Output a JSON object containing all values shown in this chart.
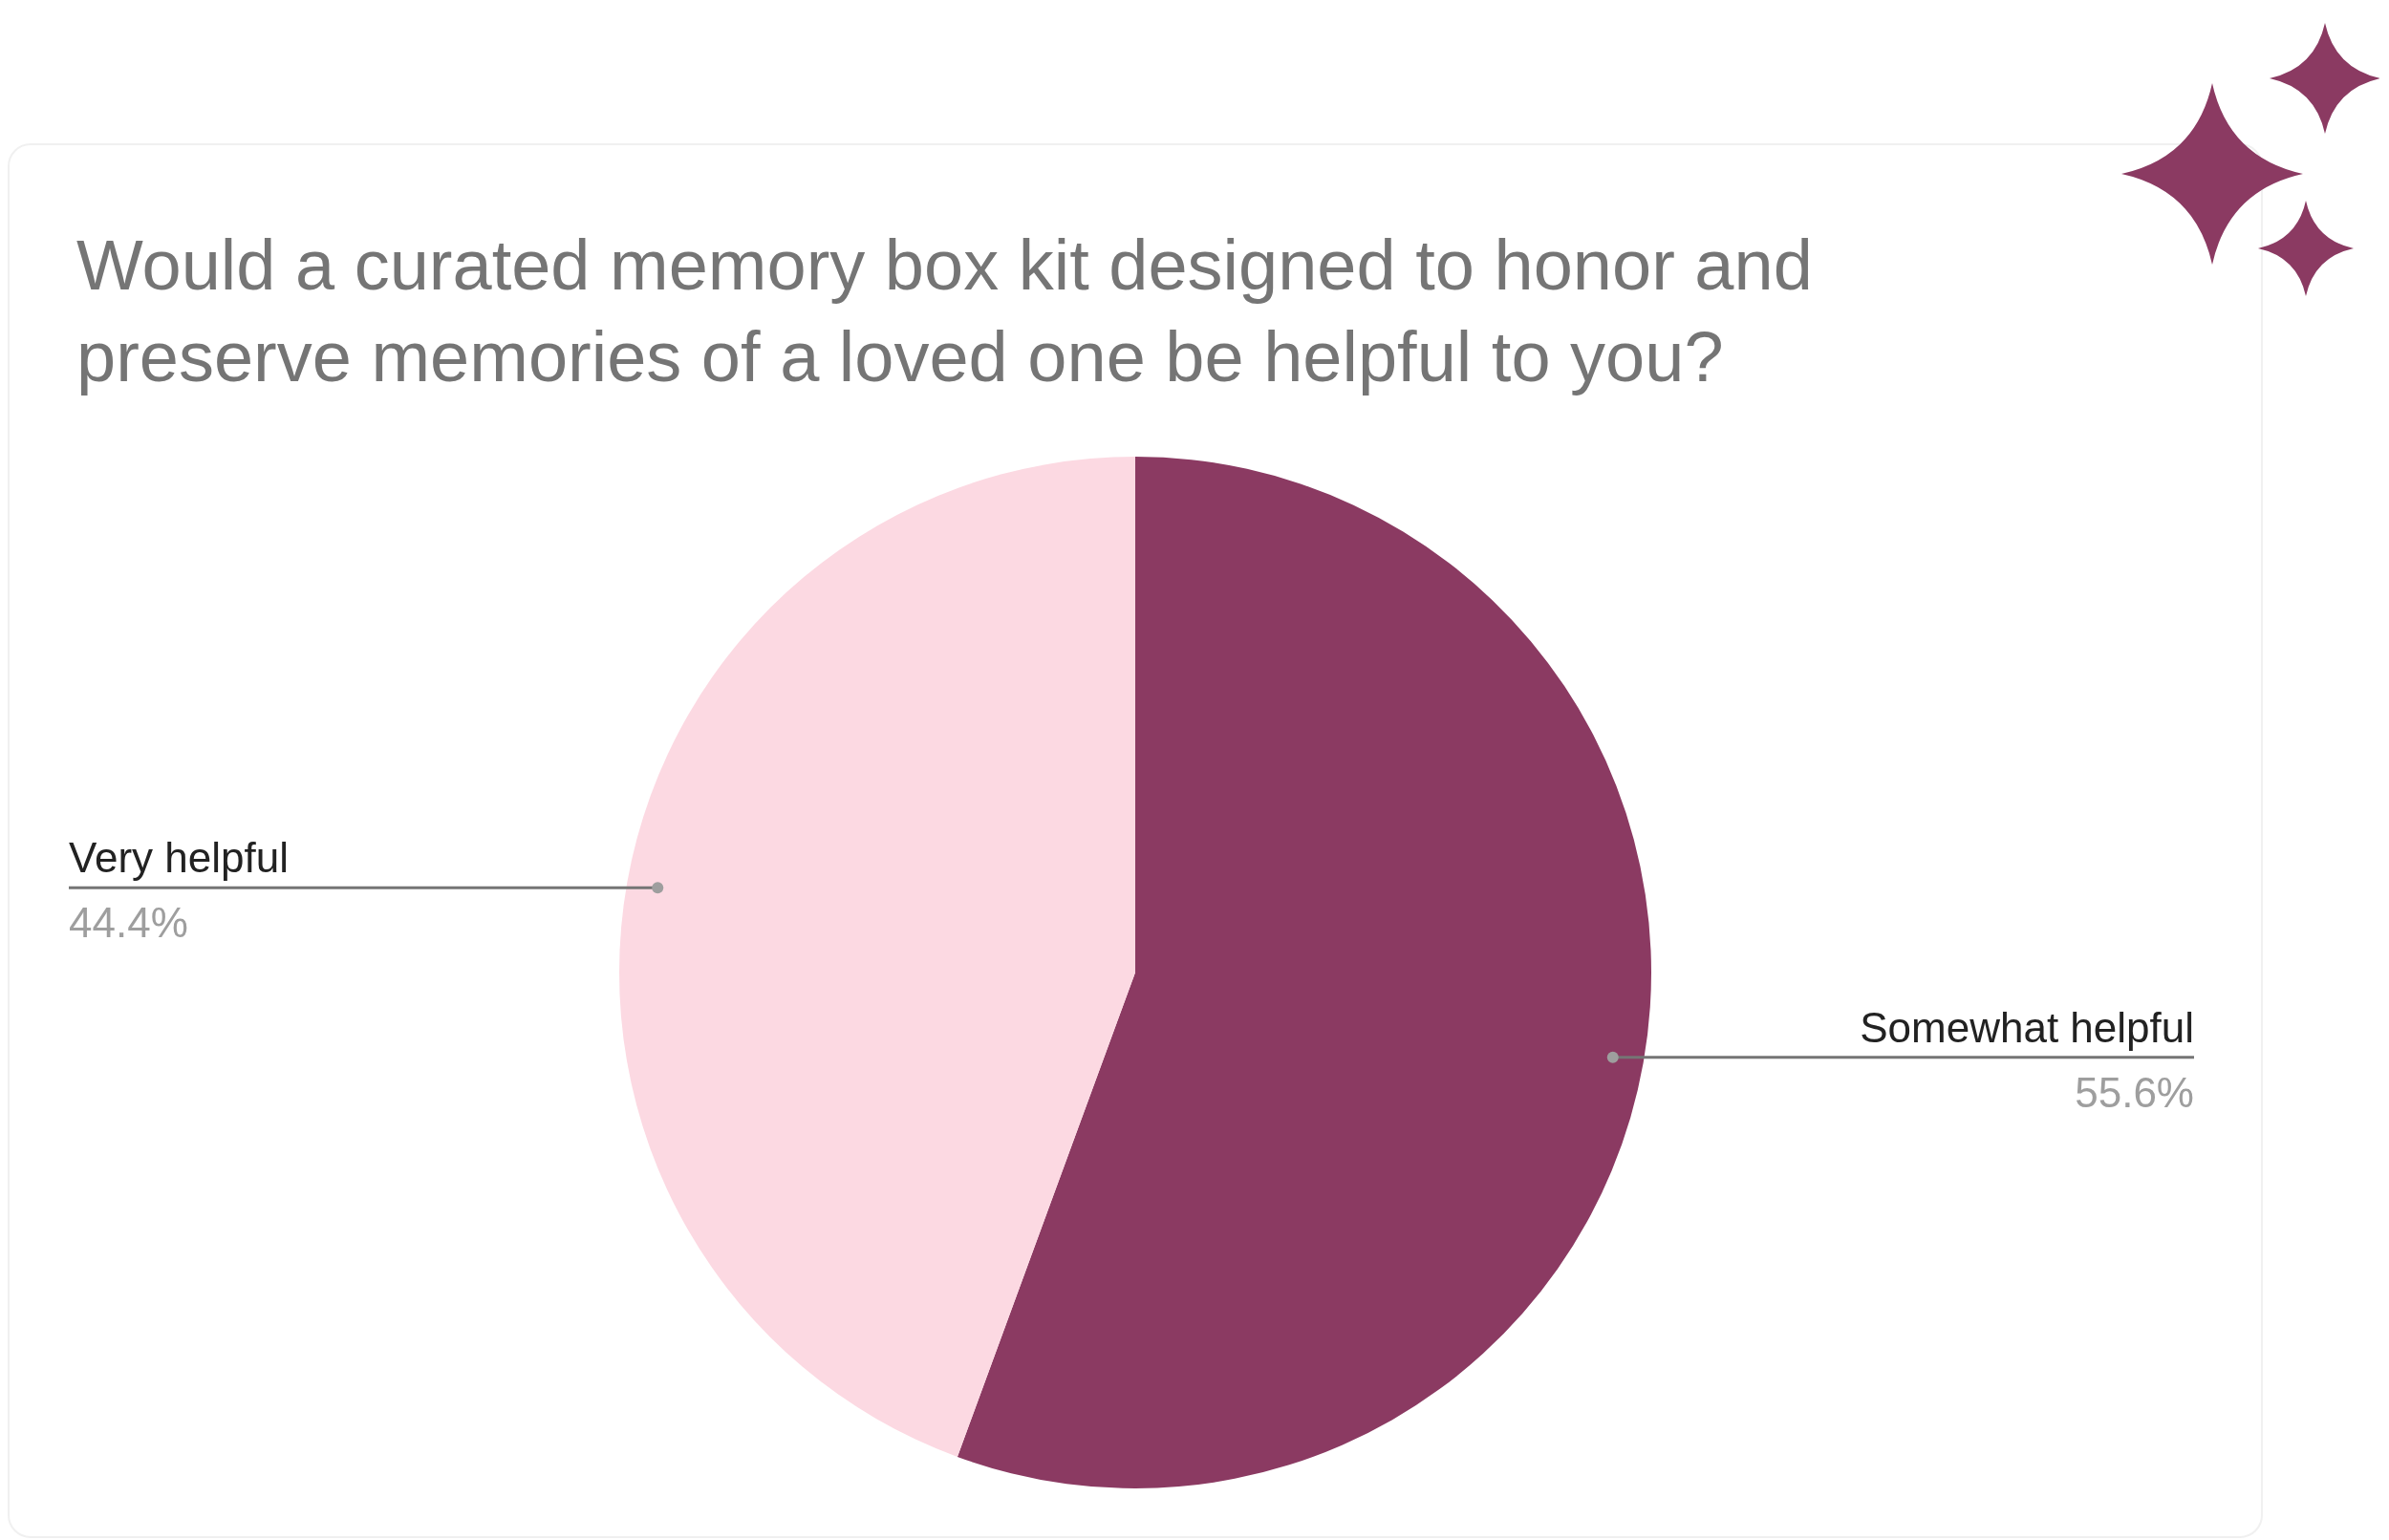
{
  "chart_data": {
    "type": "pie",
    "title": "Would a curated memory box kit designed to honor and preserve memories of a loved one be helpful to you?",
    "categories": [
      "Somewhat helpful",
      "Very helpful"
    ],
    "values": [
      55.6,
      44.4
    ],
    "colors": [
      "#8b3a62",
      "#fcd9e2"
    ],
    "value_labels": [
      "55.6%",
      "44.4%"
    ],
    "legend": false
  }
}
